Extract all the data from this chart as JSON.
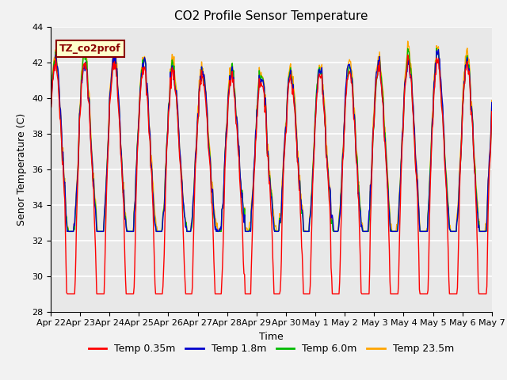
{
  "title": "CO2 Profile Sensor Temperature",
  "ylabel": "Senor Temperature (C)",
  "xlabel": "Time",
  "annotation_text": "TZ_co2prof",
  "annotation_color": "#8B0000",
  "annotation_bg": "#FFFFCC",
  "annotation_border": "#8B0000",
  "ylim": [
    28,
    44
  ],
  "yticks": [
    28,
    30,
    32,
    34,
    36,
    38,
    40,
    42,
    44
  ],
  "series": [
    {
      "label": "Temp 0.35m",
      "color": "#FF0000",
      "linewidth": 1.0
    },
    {
      "label": "Temp 1.8m",
      "color": "#0000CC",
      "linewidth": 1.0
    },
    {
      "label": "Temp 6.0m",
      "color": "#00BB00",
      "linewidth": 1.0
    },
    {
      "label": "Temp 23.5m",
      "color": "#FFA500",
      "linewidth": 1.0
    }
  ],
  "x_tick_labels": [
    "Apr 22",
    "Apr 23",
    "Apr 24",
    "Apr 25",
    "Apr 26",
    "Apr 27",
    "Apr 28",
    "Apr 29",
    "Apr 30",
    "May 1",
    "May 2",
    "May 3",
    "May 4",
    "May 5",
    "May 6",
    "May 7"
  ],
  "plot_bg": "#E8E8E8",
  "fig_bg": "#F2F2F2",
  "grid_color": "#FFFFFF",
  "title_fontsize": 11,
  "axis_label_fontsize": 9,
  "tick_fontsize": 8,
  "legend_fontsize": 9,
  "n_days": 15,
  "n_per_day": 48,
  "seed": 7
}
